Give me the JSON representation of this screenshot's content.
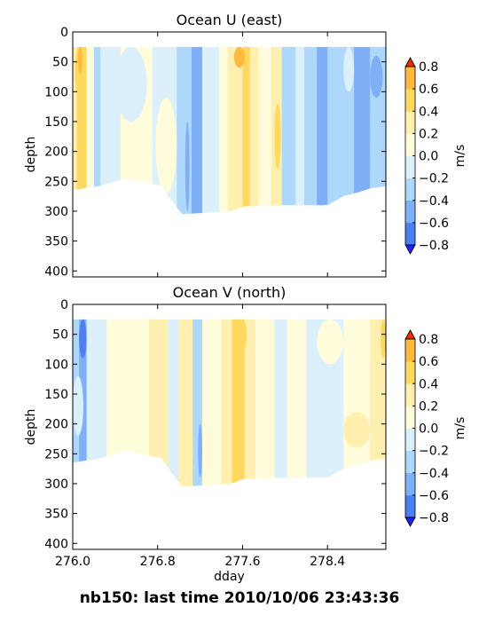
{
  "figure_title": "nb150: last time 2010/10/06 23:43:36",
  "colors": {
    "levels": [
      "#2850ff",
      "#4c7ff0",
      "#7fb0f7",
      "#add7fb",
      "#dcf0fb",
      "#fffcdb",
      "#fff0b0",
      "#ffd860",
      "#ffb840",
      "#ff9a2a",
      "#ff6a10"
    ],
    "extend_low": "#2020ff",
    "extend_high": "#ee2a00"
  },
  "chart_data": [
    {
      "type": "contourf",
      "title": "Ocean U (east)",
      "xlabel": "",
      "ylabel": "depth",
      "xlim": [
        276.0,
        278.95
      ],
      "ylim": [
        410,
        0
      ],
      "xticks": [
        276.0,
        276.8,
        277.6,
        278.4
      ],
      "xtick_labels": [
        "",
        "",
        "",
        ""
      ],
      "yticks": [
        0,
        50,
        100,
        150,
        200,
        250,
        300,
        350,
        400
      ],
      "colorbar": {
        "label": "m/s",
        "levels": [
          -0.8,
          -0.6,
          -0.4,
          -0.2,
          0.0,
          0.2,
          0.4,
          0.6,
          0.8
        ],
        "tick_labels": [
          "−0.8",
          "−0.6",
          "−0.4",
          "−0.2",
          "0.0",
          "0.2",
          "0.4",
          "0.6",
          "0.8"
        ],
        "extend": "both"
      },
      "data_top": 25,
      "bottom_profile": [
        [
          276.0,
          265
        ],
        [
          276.1,
          262
        ],
        [
          276.25,
          258
        ],
        [
          276.5,
          245
        ],
        [
          276.85,
          258
        ],
        [
          276.9,
          275
        ],
        [
          277.03,
          305
        ],
        [
          277.5,
          300
        ],
        [
          277.6,
          292
        ],
        [
          278.0,
          290
        ],
        [
          278.4,
          290
        ],
        [
          278.55,
          275
        ],
        [
          278.7,
          268
        ],
        [
          278.8,
          262
        ],
        [
          278.95,
          258
        ]
      ],
      "columns": [
        {
          "x": [
            276.0,
            276.04
          ],
          "v": 0.2
        },
        {
          "x": [
            276.04,
            276.13
          ],
          "v": 0.5
        },
        {
          "x": [
            276.13,
            276.2
          ],
          "v": 0.1
        },
        {
          "x": [
            276.2,
            276.26
          ],
          "v": -0.3
        },
        {
          "x": [
            276.26,
            276.45
          ],
          "v": -0.1
        },
        {
          "x": [
            276.45,
            276.75
          ],
          "v": 0.1
        },
        {
          "x": [
            276.75,
            276.98
          ],
          "v": -0.1
        },
        {
          "x": [
            276.98,
            277.12
          ],
          "v": -0.35
        },
        {
          "x": [
            277.12,
            277.22
          ],
          "v": -0.5
        },
        {
          "x": [
            277.22,
            277.38
          ],
          "v": -0.2
        },
        {
          "x": [
            277.38,
            277.46
          ],
          "v": 0.1
        },
        {
          "x": [
            277.46,
            277.6
          ],
          "v": 0.3
        },
        {
          "x": [
            277.6,
            277.67
          ],
          "v": 0.5
        },
        {
          "x": [
            277.67,
            277.75
          ],
          "v": 0.3
        },
        {
          "x": [
            277.75,
            277.87
          ],
          "v": 0.1
        },
        {
          "x": [
            277.87,
            277.97
          ],
          "v": 0.3
        },
        {
          "x": [
            277.97,
            278.1
          ],
          "v": -0.3
        },
        {
          "x": [
            278.1,
            278.18
          ],
          "v": -0.1
        },
        {
          "x": [
            278.18,
            278.3
          ],
          "v": -0.3
        },
        {
          "x": [
            278.3,
            278.4
          ],
          "v": -0.5
        },
        {
          "x": [
            278.4,
            278.65
          ],
          "v": -0.3
        },
        {
          "x": [
            278.65,
            278.8
          ],
          "v": -0.5
        },
        {
          "x": [
            278.8,
            278.95
          ],
          "v": -0.3
        }
      ],
      "features": [
        {
          "x": [
            276.02,
            276.12
          ],
          "d": [
            25,
            110
          ],
          "v": 0.5
        },
        {
          "x": [
            276.05,
            276.09
          ],
          "d": [
            25,
            70
          ],
          "v": 0.7
        },
        {
          "x": [
            276.4,
            276.7
          ],
          "d": [
            25,
            150
          ],
          "v": -0.1
        },
        {
          "x": [
            276.78,
            276.98
          ],
          "d": [
            110,
            270
          ],
          "v": 0.1
        },
        {
          "x": [
            277.06,
            277.1
          ],
          "d": [
            150,
            300
          ],
          "v": -0.5
        },
        {
          "x": [
            277.52,
            277.62
          ],
          "d": [
            25,
            60
          ],
          "v": 0.7
        },
        {
          "x": [
            277.9,
            277.96
          ],
          "d": [
            120,
            230
          ],
          "v": 0.5
        },
        {
          "x": [
            278.55,
            278.65
          ],
          "d": [
            25,
            100
          ],
          "v": -0.1
        },
        {
          "x": [
            278.8,
            278.92
          ],
          "d": [
            40,
            110
          ],
          "v": -0.5
        }
      ]
    },
    {
      "type": "contourf",
      "title": "Ocean V (north)",
      "xlabel": "dday",
      "ylabel": "depth",
      "xlim": [
        276.0,
        278.95
      ],
      "ylim": [
        410,
        0
      ],
      "xticks": [
        276.0,
        276.8,
        277.6,
        278.4
      ],
      "xtick_labels": [
        "276.0",
        "276.8",
        "277.6",
        "278.4"
      ],
      "yticks": [
        0,
        50,
        100,
        150,
        200,
        250,
        300,
        350,
        400
      ],
      "colorbar": {
        "label": "m/s",
        "levels": [
          -0.8,
          -0.6,
          -0.4,
          -0.2,
          0.0,
          0.2,
          0.4,
          0.6,
          0.8
        ],
        "tick_labels": [
          "−0.8",
          "−0.6",
          "−0.4",
          "−0.2",
          "0.0",
          "0.2",
          "0.4",
          "0.6",
          "0.8"
        ],
        "extend": "both"
      },
      "data_top": 25,
      "bottom_profile": [
        [
          276.0,
          265
        ],
        [
          276.1,
          262
        ],
        [
          276.25,
          258
        ],
        [
          276.5,
          245
        ],
        [
          276.85,
          258
        ],
        [
          276.9,
          275
        ],
        [
          277.03,
          305
        ],
        [
          277.5,
          300
        ],
        [
          277.6,
          292
        ],
        [
          278.0,
          290
        ],
        [
          278.4,
          290
        ],
        [
          278.55,
          275
        ],
        [
          278.7,
          268
        ],
        [
          278.8,
          262
        ],
        [
          278.95,
          258
        ]
      ],
      "columns": [
        {
          "x": [
            276.0,
            276.06
          ],
          "v": -0.3
        },
        {
          "x": [
            276.06,
            276.13
          ],
          "v": -0.5
        },
        {
          "x": [
            276.13,
            276.32
          ],
          "v": -0.1
        },
        {
          "x": [
            276.32,
            276.72
          ],
          "v": 0.1
        },
        {
          "x": [
            276.72,
            276.9
          ],
          "v": 0.3
        },
        {
          "x": [
            276.9,
            277.0
          ],
          "v": -0.1
        },
        {
          "x": [
            277.0,
            277.13
          ],
          "v": 0.3
        },
        {
          "x": [
            277.13,
            277.22
          ],
          "v": -0.3
        },
        {
          "x": [
            277.22,
            277.4
          ],
          "v": 0.1
        },
        {
          "x": [
            277.4,
            277.5
          ],
          "v": 0.3
        },
        {
          "x": [
            277.5,
            277.62
          ],
          "v": 0.5
        },
        {
          "x": [
            277.62,
            277.72
          ],
          "v": 0.3
        },
        {
          "x": [
            277.72,
            277.9
          ],
          "v": 0.1
        },
        {
          "x": [
            277.9,
            278.02
          ],
          "v": -0.1
        },
        {
          "x": [
            278.02,
            278.2
          ],
          "v": 0.1
        },
        {
          "x": [
            278.2,
            278.55
          ],
          "v": -0.1
        },
        {
          "x": [
            278.55,
            278.8
          ],
          "v": 0.1
        },
        {
          "x": [
            278.8,
            278.95
          ],
          "v": 0.3
        }
      ],
      "features": [
        {
          "x": [
            276.06,
            276.13
          ],
          "d": [
            25,
            90
          ],
          "v": -0.7
        },
        {
          "x": [
            276.0,
            276.1
          ],
          "d": [
            120,
            220
          ],
          "v": -0.1
        },
        {
          "x": [
            277.18,
            277.22
          ],
          "d": [
            200,
            290
          ],
          "v": -0.5
        },
        {
          "x": [
            277.54,
            277.64
          ],
          "d": [
            25,
            80
          ],
          "v": 0.5
        },
        {
          "x": [
            278.3,
            278.55
          ],
          "d": [
            25,
            100
          ],
          "v": 0.1
        },
        {
          "x": [
            278.9,
            278.95
          ],
          "d": [
            25,
            90
          ],
          "v": 0.5
        },
        {
          "x": [
            278.55,
            278.8
          ],
          "d": [
            180,
            240
          ],
          "v": 0.3
        }
      ]
    }
  ]
}
